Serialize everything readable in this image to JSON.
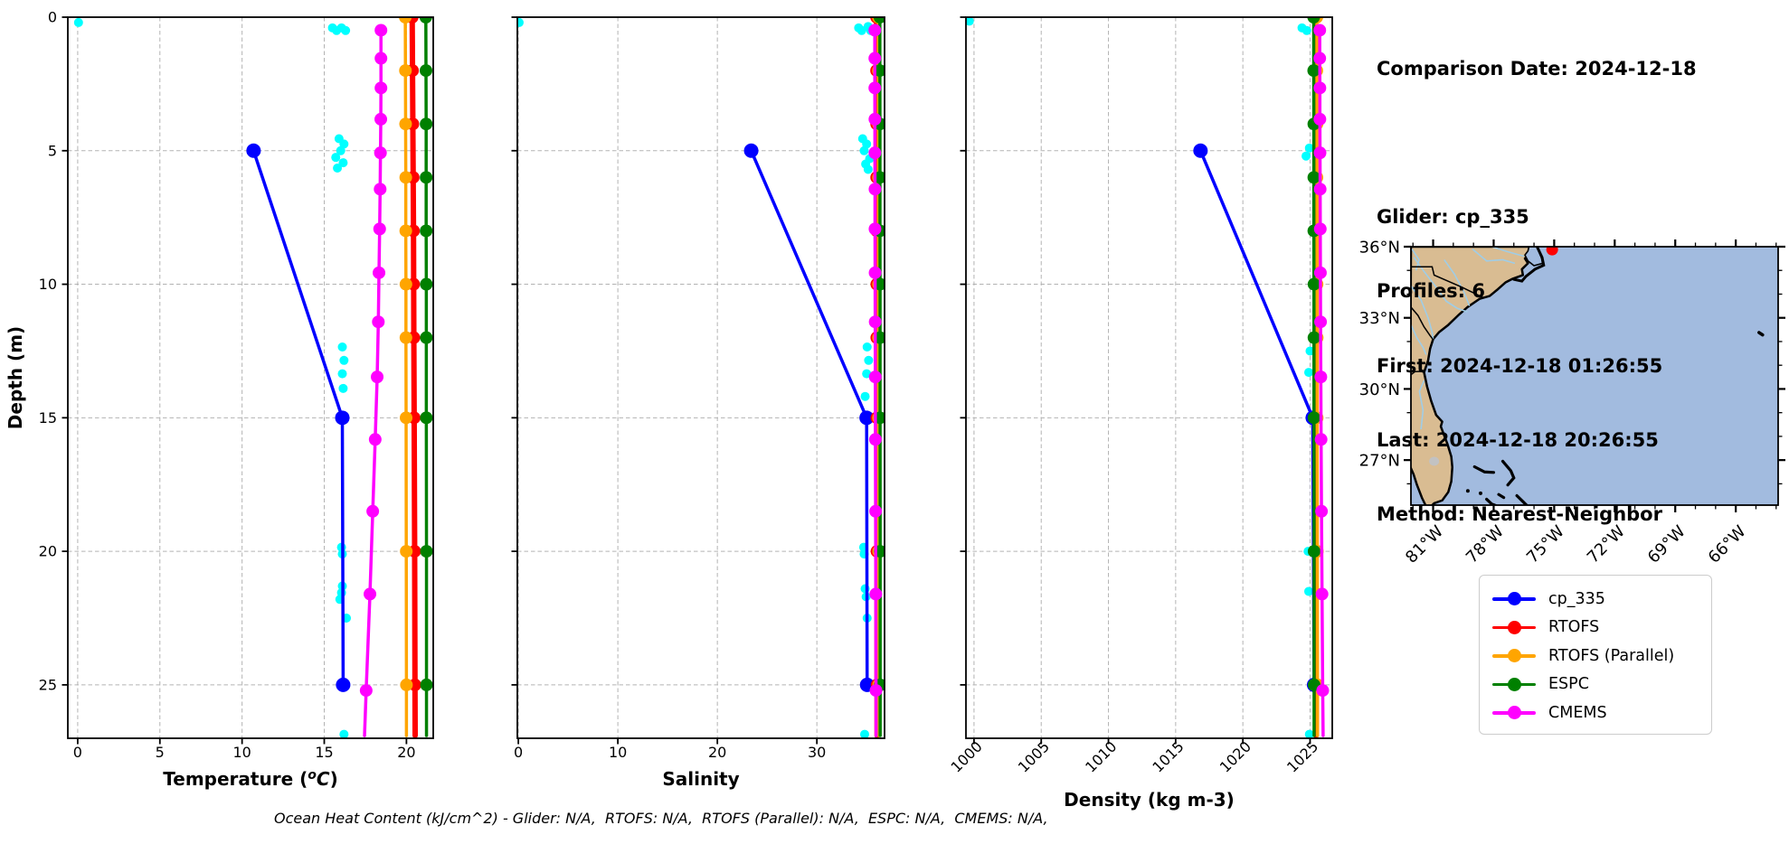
{
  "info_panel": {
    "lines": [
      "Comparison Date: 2024-12-18",
      "",
      "Glider: cp_335",
      "Profiles: 6",
      "First: 2024-12-18 01:26:55",
      "Last: 2024-12-18 20:26:55",
      "Method: Nearest-Neighbor"
    ]
  },
  "footer": {
    "ohc_text": "Ocean Heat Content (kJ/cm^2) - Glider: N/A,  RTOFS: N/A,  RTOFS (Parallel): N/A,  ESPC: N/A,  CMEMS: N/A,"
  },
  "legend": {
    "entries": [
      {
        "label": "cp_335",
        "color": "#0000ff"
      },
      {
        "label": "RTOFS",
        "color": "#ff0000"
      },
      {
        "label": "RTOFS (Parallel)",
        "color": "#ffa500"
      },
      {
        "label": "ESPC",
        "color": "#008000"
      },
      {
        "label": "CMEMS",
        "color": "#ff00ff"
      }
    ]
  },
  "chart_data": [
    {
      "id": "temperature",
      "type": "line",
      "xlabel": "Temperature (°C)",
      "xlabel_parts": [
        {
          "t": "Temperature ("
        },
        {
          "t": "o",
          "sup": true,
          "italic": true
        },
        {
          "t": "C",
          "italic": true
        },
        {
          "t": ")"
        }
      ],
      "ylabel": "Depth (m)",
      "xlim": [
        -0.6,
        21.63
      ],
      "xticks": [
        0,
        5,
        10,
        15,
        20
      ],
      "xtick_rotation": 0,
      "ylim": [
        0,
        27
      ],
      "yticks": [
        0,
        5,
        10,
        15,
        20,
        25
      ],
      "show_ytick_labels": true,
      "grid": true,
      "series": [
        {
          "name": "cp_335",
          "color": "#0000ff",
          "width": 3.5,
          "marker_r": 8,
          "depth": [
            5,
            15,
            25
          ],
          "values": [
            10.7,
            16.1,
            16.15
          ]
        },
        {
          "name": "RTOFS",
          "color": "#ff0000",
          "width": 6,
          "marker_r": 7,
          "depth": [
            0,
            2,
            4,
            6,
            8,
            10,
            12,
            15,
            20,
            25
          ],
          "values": [
            20.35,
            20.37,
            20.39,
            20.41,
            20.43,
            20.44,
            20.45,
            20.47,
            20.5,
            20.52
          ],
          "ext_depth": 26.9,
          "ext_value": 20.53
        },
        {
          "name": "RTOFS (Parallel)",
          "color": "#ffa500",
          "width": 3.5,
          "marker_r": 7,
          "depth": [
            0,
            2,
            4,
            6,
            8,
            10,
            12,
            15,
            20,
            25
          ],
          "values": [
            19.93,
            19.94,
            19.95,
            19.96,
            19.96,
            19.97,
            19.97,
            19.98,
            19.99,
            20.0
          ],
          "ext_depth": 26.9,
          "ext_value": 20.0
        },
        {
          "name": "ESPC",
          "color": "#008000",
          "width": 3.5,
          "marker_r": 7,
          "depth": [
            0,
            2,
            4,
            6,
            8,
            10,
            12,
            15,
            20,
            25
          ],
          "values": [
            21.18,
            21.19,
            21.2,
            21.2,
            21.2,
            21.21,
            21.21,
            21.21,
            21.22,
            21.22
          ],
          "ext_depth": 26.9,
          "ext_value": 21.22
        },
        {
          "name": "CMEMS",
          "color": "#ff00ff",
          "width": 3.5,
          "marker_r": 7,
          "depth": [
            0.49,
            1.54,
            2.65,
            3.82,
            5.08,
            6.44,
            7.93,
            9.57,
            11.41,
            13.47,
            15.81,
            18.5,
            21.6,
            25.21
          ],
          "values": [
            18.45,
            18.45,
            18.45,
            18.44,
            18.42,
            18.4,
            18.37,
            18.33,
            18.29,
            18.22,
            18.1,
            17.95,
            17.78,
            17.55
          ],
          "ext_depth": 26.9,
          "ext_value": 17.45
        }
      ],
      "scatter": {
        "name": "glider-raw-observations",
        "color": "#00ffff",
        "r": 5,
        "points": [
          [
            0.05,
            0.2
          ],
          [
            15.5,
            0.4
          ],
          [
            15.75,
            0.5
          ],
          [
            16.05,
            0.4
          ],
          [
            16.3,
            0.5
          ],
          [
            15.9,
            4.55
          ],
          [
            16.2,
            4.75
          ],
          [
            16.0,
            5.0
          ],
          [
            15.7,
            5.25
          ],
          [
            16.15,
            5.45
          ],
          [
            15.8,
            5.65
          ],
          [
            16.1,
            12.35
          ],
          [
            16.2,
            12.85
          ],
          [
            16.1,
            13.35
          ],
          [
            16.15,
            13.9
          ],
          [
            16.05,
            19.85
          ],
          [
            16.1,
            20.1
          ],
          [
            16.1,
            21.3
          ],
          [
            16.05,
            21.55
          ],
          [
            15.95,
            21.8
          ],
          [
            16.35,
            22.5
          ],
          [
            16.2,
            26.85
          ]
        ]
      }
    },
    {
      "id": "salinity",
      "type": "line",
      "xlabel": "Salinity",
      "xlabel_parts": [
        {
          "t": "Salinity"
        }
      ],
      "xlim": [
        -0.1,
        36.8
      ],
      "xticks": [
        0,
        10,
        20,
        30
      ],
      "xtick_rotation": 0,
      "ylim": [
        0,
        27
      ],
      "yticks": [
        0,
        5,
        10,
        15,
        20,
        25
      ],
      "show_ytick_labels": false,
      "grid": true,
      "series": [
        {
          "name": "cp_335",
          "color": "#0000ff",
          "width": 3.5,
          "marker_r": 8,
          "depth": [
            5,
            15,
            25
          ],
          "values": [
            23.4,
            35.0,
            35.05
          ]
        },
        {
          "name": "RTOFS",
          "color": "#ff0000",
          "width": 6,
          "marker_r": 7,
          "depth": [
            0,
            2,
            4,
            6,
            8,
            10,
            12,
            15,
            20,
            25
          ],
          "values": [
            36.0,
            36.0,
            36.01,
            36.01,
            36.02,
            36.02,
            36.02,
            36.03,
            36.04,
            36.05
          ],
          "ext_depth": 26.9,
          "ext_value": 36.05
        },
        {
          "name": "RTOFS (Parallel)",
          "color": "#ffa500",
          "width": 3.5,
          "marker_r": 7,
          "depth": [
            0,
            2,
            4,
            6,
            8,
            10,
            12,
            15,
            20,
            25
          ],
          "values": [
            36.18,
            36.18,
            36.19,
            36.19,
            36.19,
            36.2,
            36.2,
            36.2,
            36.21,
            36.21
          ],
          "ext_depth": 26.9,
          "ext_value": 36.21
        },
        {
          "name": "ESPC",
          "color": "#008000",
          "width": 3.5,
          "marker_r": 7,
          "depth": [
            0,
            2,
            4,
            6,
            8,
            10,
            12,
            15,
            20,
            25
          ],
          "values": [
            36.33,
            36.33,
            36.34,
            36.34,
            36.34,
            36.35,
            36.35,
            36.35,
            36.36,
            36.36
          ],
          "ext_depth": 26.9,
          "ext_value": 36.36
        },
        {
          "name": "CMEMS",
          "color": "#ff00ff",
          "width": 3.5,
          "marker_r": 7,
          "depth": [
            0.49,
            1.54,
            2.65,
            3.82,
            5.08,
            6.44,
            7.93,
            9.57,
            11.41,
            13.47,
            15.81,
            18.5,
            21.6,
            25.21
          ],
          "values": [
            35.82,
            35.82,
            35.82,
            35.83,
            35.83,
            35.84,
            35.84,
            35.85,
            35.86,
            35.87,
            35.88,
            35.9,
            35.92,
            35.94
          ],
          "ext_depth": 26.9,
          "ext_value": 35.95
        }
      ],
      "scatter": {
        "name": "glider-raw-observations",
        "color": "#00ffff",
        "r": 5,
        "points": [
          [
            0.08,
            0.2
          ],
          [
            34.2,
            0.4
          ],
          [
            34.5,
            0.5
          ],
          [
            35.15,
            0.35
          ],
          [
            35.4,
            0.5
          ],
          [
            34.6,
            4.55
          ],
          [
            35.0,
            4.75
          ],
          [
            34.75,
            5.0
          ],
          [
            35.3,
            5.3
          ],
          [
            34.9,
            5.5
          ],
          [
            35.15,
            5.7
          ],
          [
            35.05,
            12.35
          ],
          [
            35.2,
            12.85
          ],
          [
            35.0,
            13.35
          ],
          [
            34.85,
            14.2
          ],
          [
            34.7,
            19.85
          ],
          [
            34.75,
            20.1
          ],
          [
            34.85,
            21.4
          ],
          [
            34.95,
            21.7
          ],
          [
            35.05,
            22.5
          ],
          [
            34.8,
            26.85
          ]
        ]
      }
    },
    {
      "id": "density",
      "type": "line",
      "xlabel": "Density (kg m-3)",
      "xlabel_parts": [
        {
          "t": "Density (kg m-3)"
        }
      ],
      "xlim": [
        999.4,
        1026.65
      ],
      "xticks": [
        1000,
        1005,
        1010,
        1015,
        1020,
        1025
      ],
      "xtick_rotation": 45,
      "ylim": [
        0,
        27
      ],
      "yticks": [
        0,
        5,
        10,
        15,
        20,
        25
      ],
      "show_ytick_labels": false,
      "grid": true,
      "series": [
        {
          "name": "cp_335",
          "color": "#0000ff",
          "width": 3.5,
          "marker_r": 8,
          "depth": [
            5,
            15,
            25
          ],
          "values": [
            1016.85,
            1025.2,
            1025.3
          ]
        },
        {
          "name": "RTOFS",
          "color": "#ff0000",
          "width": 6,
          "marker_r": 7,
          "depth": [
            0,
            2,
            4,
            6,
            8,
            10,
            12,
            15,
            20,
            25
          ],
          "values": [
            1025.4,
            1025.4,
            1025.41,
            1025.41,
            1025.42,
            1025.42,
            1025.43,
            1025.43,
            1025.44,
            1025.45
          ],
          "ext_depth": 26.9,
          "ext_value": 1025.45
        },
        {
          "name": "RTOFS (Parallel)",
          "color": "#ffa500",
          "width": 3.5,
          "marker_r": 7,
          "depth": [
            0,
            2,
            4,
            6,
            8,
            10,
            12,
            15,
            20,
            25
          ],
          "values": [
            1025.5,
            1025.5,
            1025.51,
            1025.51,
            1025.52,
            1025.52,
            1025.53,
            1025.53,
            1025.54,
            1025.55
          ],
          "ext_depth": 26.9,
          "ext_value": 1025.55
        },
        {
          "name": "ESPC",
          "color": "#008000",
          "width": 3.5,
          "marker_r": 7,
          "depth": [
            0,
            2,
            4,
            6,
            8,
            10,
            12,
            15,
            20,
            25
          ],
          "values": [
            1025.27,
            1025.27,
            1025.28,
            1025.28,
            1025.28,
            1025.29,
            1025.29,
            1025.29,
            1025.3,
            1025.3
          ],
          "ext_depth": 26.9,
          "ext_value": 1025.3
        },
        {
          "name": "CMEMS",
          "color": "#ff00ff",
          "width": 3.5,
          "marker_r": 7,
          "depth": [
            0.49,
            1.54,
            2.65,
            3.82,
            5.08,
            6.44,
            7.93,
            9.57,
            11.41,
            13.47,
            15.81,
            18.5,
            21.6,
            25.21
          ],
          "values": [
            1025.72,
            1025.72,
            1025.73,
            1025.73,
            1025.74,
            1025.75,
            1025.76,
            1025.77,
            1025.78,
            1025.8,
            1025.82,
            1025.85,
            1025.89,
            1025.94
          ],
          "ext_depth": 26.9,
          "ext_value": 1025.97
        }
      ],
      "scatter": {
        "name": "glider-raw-observations",
        "color": "#00ffff",
        "r": 5,
        "points": [
          [
            999.65,
            0.15
          ],
          [
            1024.4,
            0.4
          ],
          [
            1024.75,
            0.5
          ],
          [
            1024.95,
            4.9
          ],
          [
            1024.7,
            5.2
          ],
          [
            1025.0,
            12.5
          ],
          [
            1024.9,
            13.3
          ],
          [
            1024.85,
            20.0
          ],
          [
            1024.9,
            21.5
          ],
          [
            1024.95,
            26.85
          ]
        ]
      }
    }
  ],
  "map": {
    "lon_ticks": [
      {
        "label": "81°W",
        "value": 81
      },
      {
        "label": "78°W",
        "value": 78
      },
      {
        "label": "75°W",
        "value": 75
      },
      {
        "label": "72°W",
        "value": 72
      },
      {
        "label": "69°W",
        "value": 69
      },
      {
        "label": "66°W",
        "value": 66
      }
    ],
    "lat_ticks": [
      {
        "label": "36°N",
        "value": 36
      },
      {
        "label": "33°N",
        "value": 33
      },
      {
        "label": "30°N",
        "value": 30
      },
      {
        "label": "27°N",
        "value": 27
      }
    ],
    "extent": {
      "lon_west": 82.1,
      "lon_east": 63.9,
      "lat_south": 25.1,
      "lat_north": 36.0
    },
    "glider_position": {
      "lon_west": 75.1,
      "lat": 35.88
    },
    "colors": {
      "land": "#d9bc92",
      "ocean": "#a2bbdf",
      "river": "#a0cde6",
      "coast": "#000000",
      "border": "#000000",
      "lake": "#c2c2c2",
      "glider_marker": "#ff0000"
    }
  }
}
